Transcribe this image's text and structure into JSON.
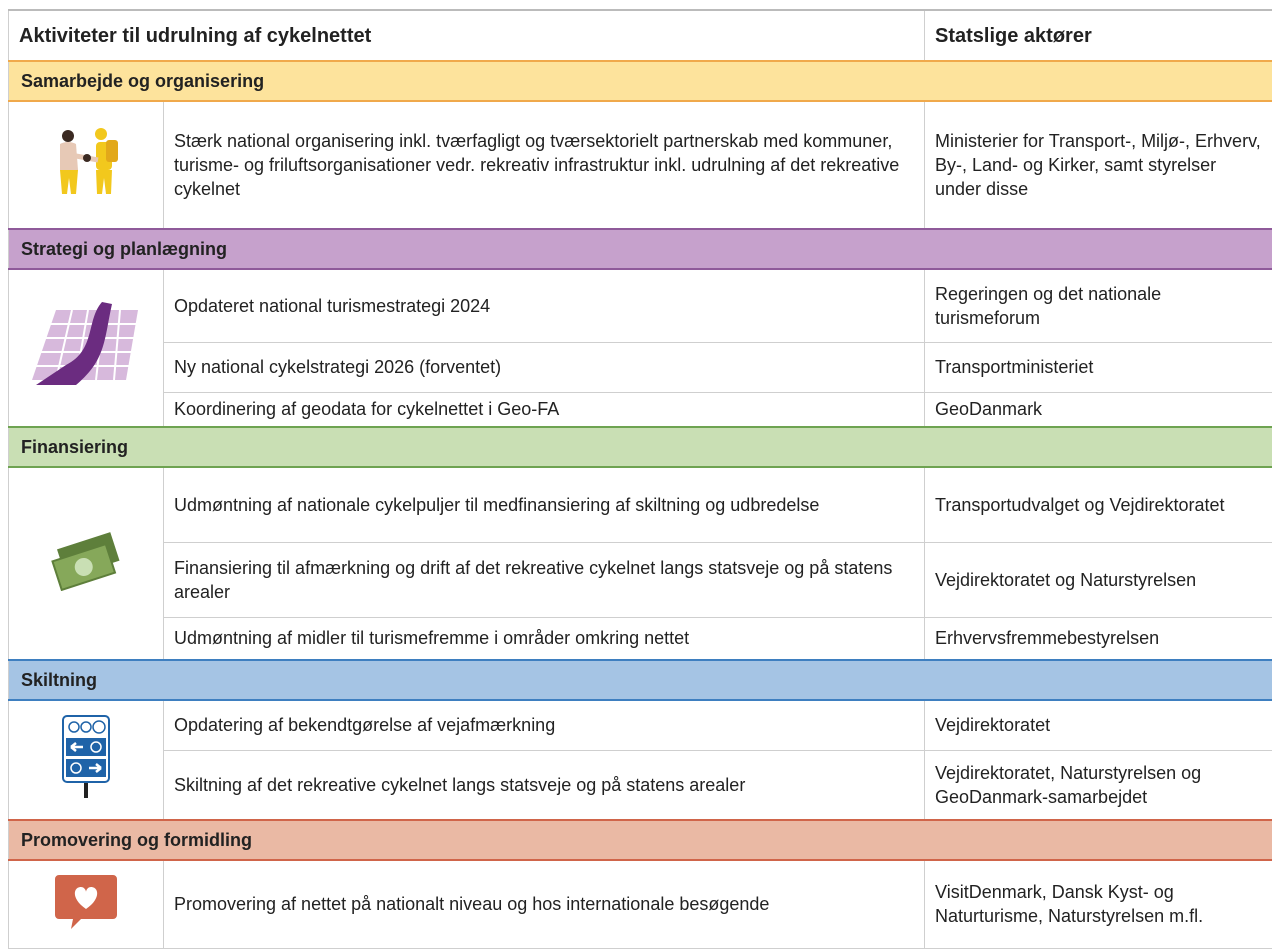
{
  "header": {
    "activities": "Aktiviteter til udrulning af cykelnettet",
    "actors": "Statslige aktører"
  },
  "sections": [
    {
      "title": "Samarbejde og organisering",
      "rows": [
        {
          "activity": "Stærk national organisering inkl. tværfagligt og tværsektorielt partnerskab med kommuner, turisme- og friluftsorganisationer vedr. rekreativ infrastruktur inkl. udrulning af det rekreative cykelnet",
          "actors": "Ministerier for Transport-, Miljø-, Erhverv, By-, Land- og Kirker, samt styrelser under disse"
        }
      ]
    },
    {
      "title": "Strategi og planlægning",
      "rows": [
        {
          "activity": "Opdateret national turismestrategi 2024",
          "actors": "Regeringen og det nationale turismeforum"
        },
        {
          "activity": "Ny national cykelstrategi 2026 (forventet)",
          "actors": "Transportministeriet"
        },
        {
          "activity": "Koordinering af geodata for cykelnettet i Geo-FA",
          "actors": "GeoDanmark"
        }
      ]
    },
    {
      "title": "Finansiering",
      "rows": [
        {
          "activity": "Udmøntning af nationale cykelpuljer til medfinansiering af skiltning og udbredelse",
          "actors": "Transportudvalget og Vejdirektoratet"
        },
        {
          "activity": "Finansiering til afmærkning og drift af det rekreative cykelnet langs statsveje og på statens arealer",
          "actors": "Vejdirektoratet og Naturstyrelsen"
        },
        {
          "activity": "Udmøntning af midler til turismefremme i områder omkring nettet",
          "actors": "Erhvervsfremmebestyrelsen"
        }
      ]
    },
    {
      "title": "Skiltning",
      "rows": [
        {
          "activity": "Opdatering af bekendtgørelse af vejafmærkning",
          "actors": "Vejdirektoratet"
        },
        {
          "activity": "Skiltning af det rekreative cykelnet langs statsveje og på statens arealer",
          "actors": "Vejdirektoratet, Naturstyrelsen og GeoDanmark-samarbejdet"
        }
      ]
    },
    {
      "title": "Promovering og formidling",
      "rows": [
        {
          "activity": "Promovering af nettet på nationalt niveau og hos internationale besøgende",
          "actors": "VisitDenmark, Dansk Kyst- og Naturturisme, Naturstyrelsen m.fl."
        }
      ]
    }
  ]
}
